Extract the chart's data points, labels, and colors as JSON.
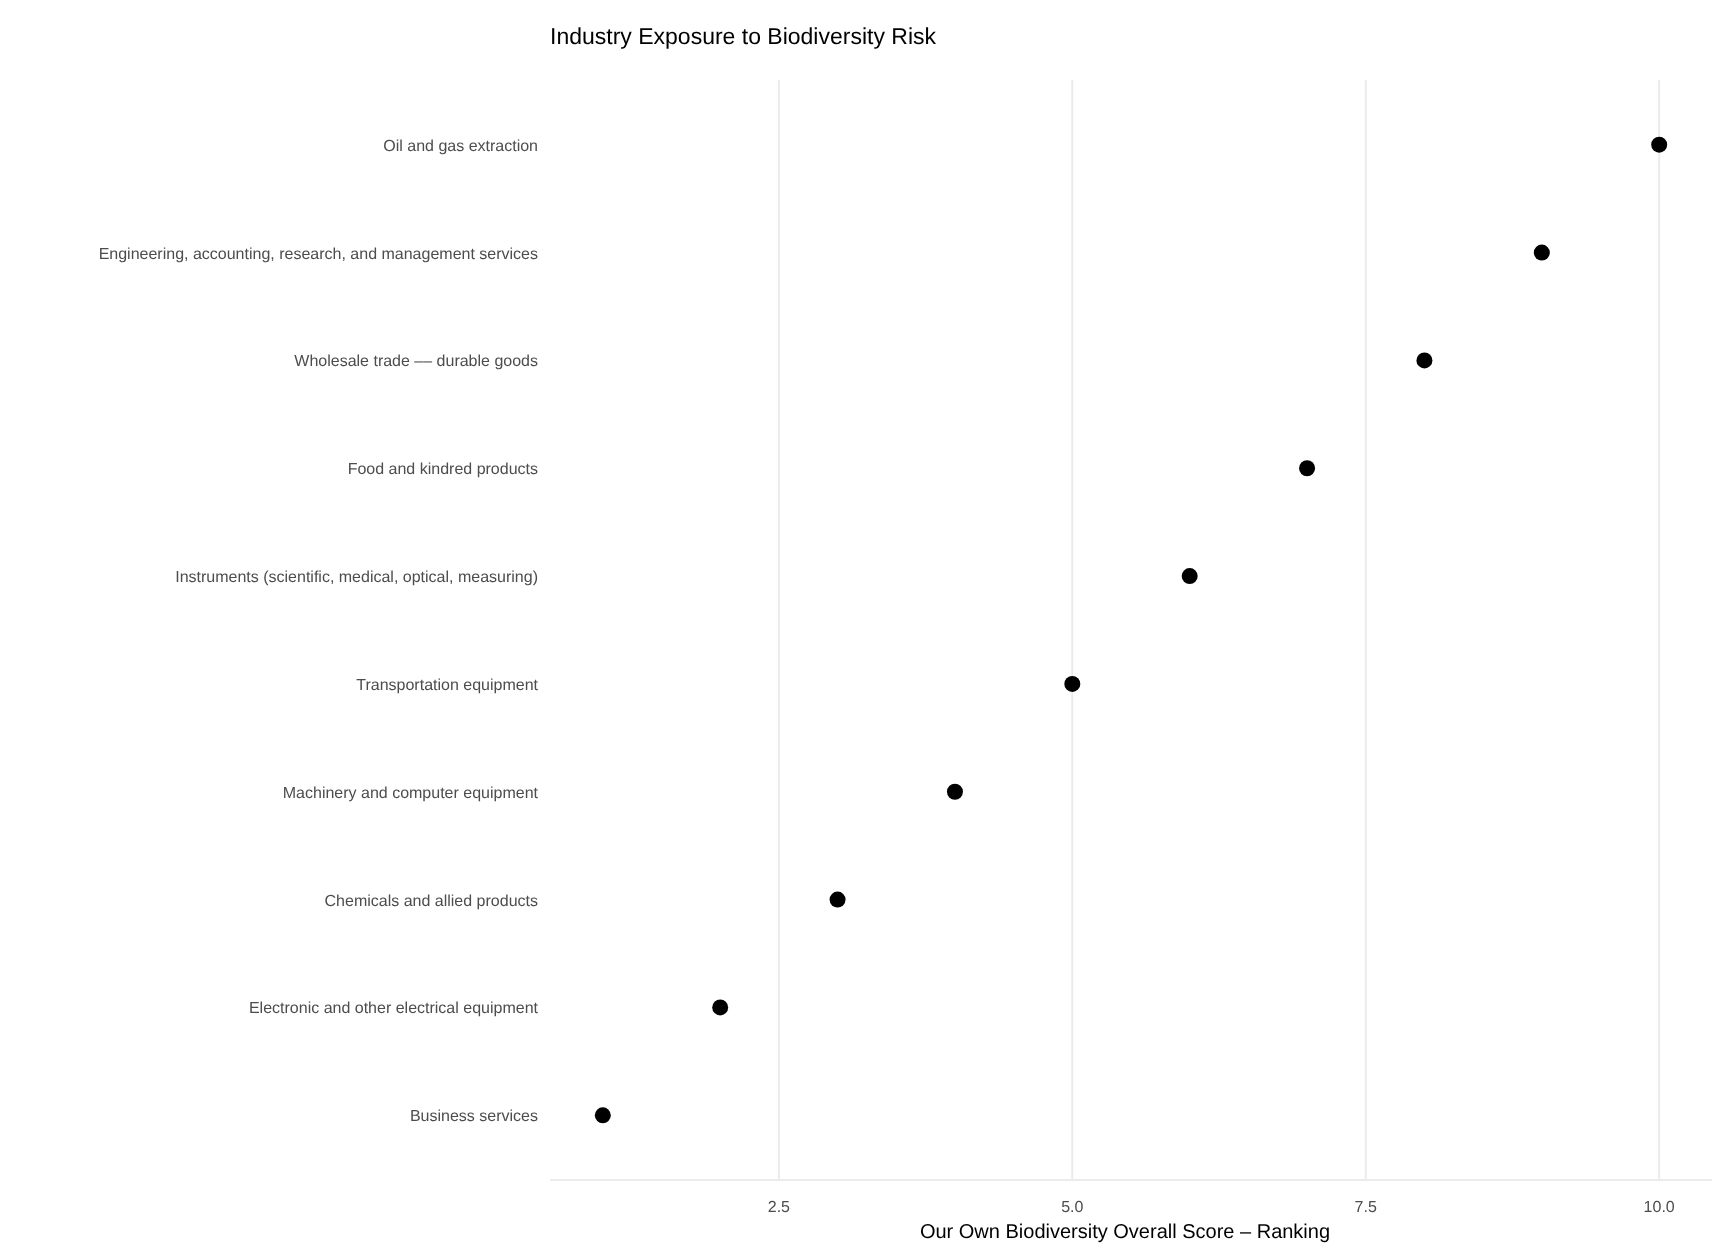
{
  "chart_data": {
    "type": "scatter",
    "orientation": "horizontal",
    "title": "Industry Exposure to Biodiversity Risk",
    "xlabel": "Our Own Biodiversity Overall Score –  Ranking",
    "categories": [
      "Oil and gas extraction",
      "Engineering, accounting, research, and management services",
      "Wholesale trade –– durable goods",
      "Food and kindred products",
      "Instruments (scientific, medical, optical, measuring)",
      "Transportation equipment",
      "Machinery and computer equipment",
      "Chemicals and allied products",
      "Electronic and other electrical equipment",
      "Business services"
    ],
    "values": [
      10,
      9,
      8,
      7,
      6,
      5,
      4,
      3,
      2,
      1
    ],
    "color": "#000000",
    "marker": "circle",
    "xlim": [
      0.55,
      10.45
    ],
    "xticks": [
      2.5,
      {
        "value": 5,
        "label": "5.0"
      },
      {
        "value": 7.5,
        "label": "7.5"
      },
      {
        "value": 10,
        "label": "10.0"
      }
    ],
    "grid": "x"
  }
}
